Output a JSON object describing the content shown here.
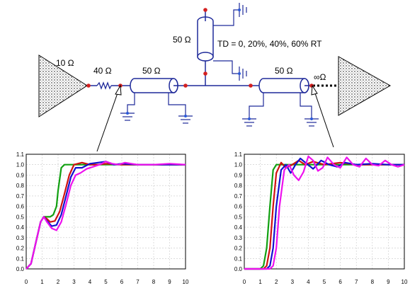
{
  "schematic": {
    "driver_resistance": "10 Ω",
    "series_resistor": "40 Ω",
    "line1_impedance": "50 Ω",
    "stub_impedance": "50 Ω",
    "td_label": "TD = 0, 20%, 40%, 60% RT",
    "line2_impedance": "50 Ω",
    "load_impedance": "∞Ω"
  },
  "colors": {
    "wire": "#1f2a9a",
    "node": "#d42020",
    "ground": "#2a5ad8",
    "series": [
      "#11a011",
      "#d01111",
      "#1111d0",
      "#ee11ee"
    ]
  },
  "chart_data": [
    {
      "type": "line",
      "xlim": [
        0,
        10
      ],
      "ylim": [
        0,
        1.1
      ],
      "xticks": [
        "0",
        "1",
        "2",
        "3",
        "4",
        "5",
        "6",
        "7",
        "8",
        "9",
        "10"
      ],
      "yticks": [
        "0.0",
        "0.1",
        "0.2",
        "0.3",
        "0.4",
        "0.5",
        "0.6",
        "0.7",
        "0.8",
        "0.9",
        "1.0",
        "1.1"
      ],
      "grid": true,
      "series": [
        {
          "color": "#11a011",
          "x": [
            0,
            0.3,
            0.6,
            0.9,
            1.1,
            1.3,
            1.5,
            1.7,
            1.9,
            2.0,
            2.2,
            2.4,
            3,
            4,
            5,
            6,
            7,
            8,
            9,
            10
          ],
          "y": [
            0,
            0.05,
            0.25,
            0.45,
            0.5,
            0.5,
            0.5,
            0.52,
            0.6,
            0.75,
            0.97,
            1.0,
            1.0,
            1.0,
            1.0,
            1.0,
            1.0,
            1.0,
            1.0,
            1.0
          ]
        },
        {
          "color": "#d01111",
          "x": [
            0,
            0.3,
            0.6,
            0.9,
            1.1,
            1.3,
            1.5,
            1.8,
            2.1,
            2.4,
            2.7,
            3.0,
            3.5,
            4.0,
            4.5,
            5,
            6,
            7,
            8,
            9,
            10
          ],
          "y": [
            0,
            0.05,
            0.25,
            0.45,
            0.5,
            0.48,
            0.45,
            0.46,
            0.55,
            0.72,
            0.9,
            1.0,
            1.02,
            1.0,
            1.0,
            1.01,
            1.0,
            1.0,
            1.0,
            1.0,
            1.0
          ]
        },
        {
          "color": "#1111d0",
          "x": [
            0,
            0.3,
            0.6,
            0.9,
            1.1,
            1.3,
            1.6,
            1.9,
            2.2,
            2.5,
            2.8,
            3.1,
            3.5,
            4.0,
            4.5,
            5.0,
            5.5,
            6,
            7,
            8,
            9,
            10
          ],
          "y": [
            0,
            0.05,
            0.25,
            0.45,
            0.5,
            0.46,
            0.41,
            0.42,
            0.52,
            0.7,
            0.88,
            0.97,
            0.97,
            1.01,
            1.02,
            1.03,
            1.0,
            1.01,
            1.0,
            1.0,
            1.0,
            1.0
          ]
        },
        {
          "color": "#ee11ee",
          "x": [
            0,
            0.3,
            0.6,
            0.9,
            1.1,
            1.3,
            1.6,
            1.9,
            2.2,
            2.5,
            2.8,
            3.1,
            3.4,
            3.8,
            4.2,
            4.6,
            5.0,
            5.4,
            5.8,
            6.2,
            6.6,
            7,
            8,
            9,
            10
          ],
          "y": [
            0,
            0.05,
            0.25,
            0.45,
            0.5,
            0.45,
            0.39,
            0.37,
            0.45,
            0.62,
            0.8,
            0.9,
            0.92,
            0.96,
            0.98,
            1.0,
            1.03,
            1.01,
            1.0,
            1.02,
            1.01,
            1.0,
            1.0,
            1.01,
            1.0
          ]
        }
      ]
    },
    {
      "type": "line",
      "xlim": [
        0,
        10
      ],
      "ylim": [
        0,
        1.1
      ],
      "xticks": [
        "0",
        "1",
        "2",
        "3",
        "4",
        "5",
        "6",
        "7",
        "8",
        "9",
        "10"
      ],
      "yticks": [
        "0.0",
        "0.1",
        "0.2",
        "0.3",
        "0.4",
        "0.5",
        "0.6",
        "0.7",
        "0.8",
        "0.9",
        "1.0",
        "1.1"
      ],
      "grid": true,
      "series": [
        {
          "color": "#11a011",
          "x": [
            0,
            1.0,
            1.2,
            1.4,
            1.6,
            1.8,
            2.0,
            2.3,
            3,
            4,
            5,
            6,
            7,
            8,
            9,
            10
          ],
          "y": [
            0,
            0,
            0.03,
            0.2,
            0.6,
            0.95,
            1.0,
            1.0,
            1.0,
            1.0,
            1.0,
            1.0,
            1.0,
            1.0,
            1.0,
            1.0
          ]
        },
        {
          "color": "#d01111",
          "x": [
            0,
            1.2,
            1.4,
            1.6,
            1.8,
            2.0,
            2.3,
            2.6,
            3.0,
            3.4,
            3.8,
            4.3,
            5,
            6,
            7,
            8,
            9,
            10
          ],
          "y": [
            0,
            0,
            0.03,
            0.2,
            0.6,
            0.92,
            1.02,
            0.97,
            1.0,
            1.04,
            1.0,
            1.03,
            1.0,
            1.02,
            1.0,
            1.0,
            1.0,
            1.0
          ]
        },
        {
          "color": "#1111d0",
          "x": [
            0,
            1.4,
            1.6,
            1.8,
            2.0,
            2.3,
            2.6,
            2.9,
            3.2,
            3.5,
            3.9,
            4.3,
            4.8,
            5.3,
            5.8,
            6.3,
            7,
            8,
            9,
            10
          ],
          "y": [
            0,
            0,
            0.03,
            0.2,
            0.6,
            0.95,
            1.0,
            0.92,
            1.0,
            1.06,
            1.01,
            0.96,
            1.04,
            1.0,
            0.98,
            1.02,
            1.0,
            1.01,
            1.0,
            1.0
          ]
        },
        {
          "color": "#ee11ee",
          "x": [
            0,
            1.6,
            1.8,
            2.0,
            2.2,
            2.5,
            2.8,
            3.1,
            3.4,
            3.7,
            4.0,
            4.3,
            4.6,
            4.9,
            5.2,
            5.6,
            6.0,
            6.4,
            6.8,
            7.2,
            7.6,
            8.0,
            8.4,
            8.8,
            9.2,
            9.6,
            10
          ],
          "y": [
            0,
            0,
            0.03,
            0.2,
            0.6,
            0.95,
            1.0,
            0.9,
            0.85,
            0.93,
            1.08,
            1.04,
            0.94,
            0.97,
            1.07,
            1.0,
            0.97,
            1.07,
            1.0,
            0.98,
            1.06,
            1.0,
            0.99,
            1.04,
            1.0,
            0.98,
            1.0
          ]
        }
      ]
    }
  ]
}
